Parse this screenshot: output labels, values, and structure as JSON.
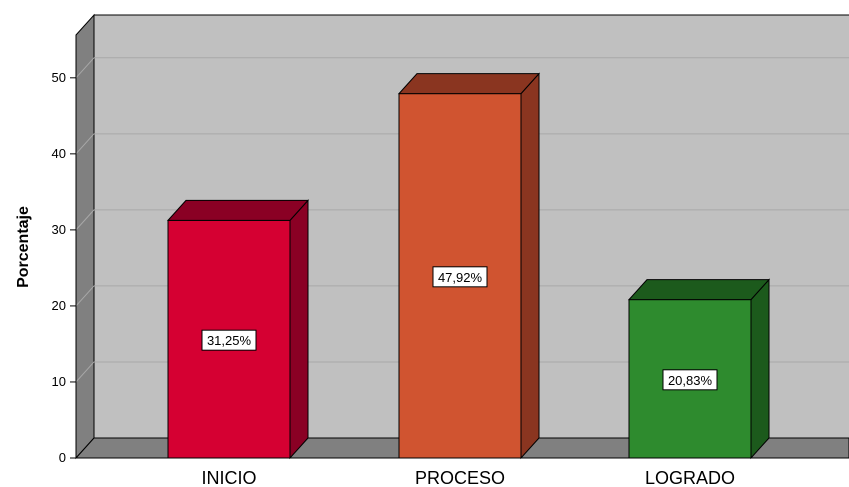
{
  "chart_data": {
    "type": "bar",
    "categories": [
      "INICIO",
      "PROCESO",
      "LOGRADO"
    ],
    "values": [
      31.25,
      47.92,
      20.83
    ],
    "data_labels": [
      "31,25%",
      "47,92%",
      "20,83%"
    ],
    "ylabel": "Porcentaje",
    "ylim": [
      0,
      53
    ],
    "yticks": [
      0,
      10,
      20,
      30,
      40,
      50
    ],
    "grid": true,
    "style": "3d",
    "colors": {
      "bars": [
        "#d50032",
        "#d05430",
        "#2e8b2e"
      ],
      "bar_sides": [
        "#8a0024",
        "#8a3520",
        "#1c5a1c"
      ],
      "bar_tops": [
        "#8a0024",
        "#8a3520",
        "#1c5a1c"
      ],
      "plot_background": "#c0c0c0",
      "wall_side": "#808080",
      "floor": "#808080",
      "gridline": "#a8a8a8"
    }
  }
}
